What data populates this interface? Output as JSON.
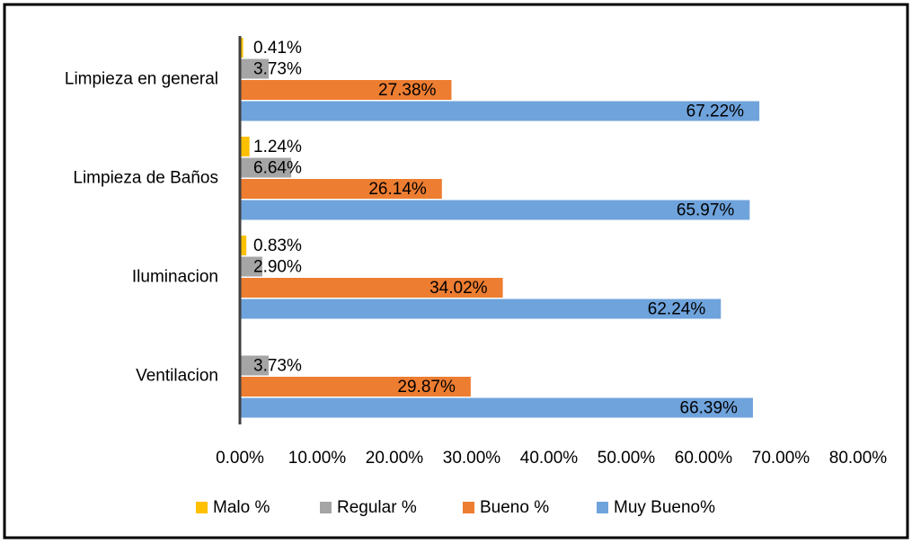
{
  "chart_data": {
    "type": "hbar",
    "categories": [
      "Limpieza en general",
      "Limpieza de Baños",
      "Iluminacion",
      "Ventilacion"
    ],
    "series": [
      {
        "name": "Malo %",
        "color": "#ffc000",
        "values": [
          0.41,
          1.24,
          0.83,
          null
        ],
        "value_labels": [
          "0.41%",
          "1.24%",
          "0.83%",
          null
        ]
      },
      {
        "name": "Regular %",
        "color": "#a5a5a5",
        "values": [
          3.73,
          6.64,
          2.9,
          3.73
        ],
        "value_labels": [
          "3.73%",
          "6.64%",
          "2.90%",
          "3.73%"
        ]
      },
      {
        "name": "Bueno %",
        "color": "#ed7d31",
        "values": [
          27.38,
          26.14,
          34.02,
          29.87
        ],
        "value_labels": [
          "27.38%",
          "26.14%",
          "34.02%",
          "29.87%"
        ]
      },
      {
        "name": "Muy Bueno%",
        "color": "#6fa3dc",
        "values": [
          67.22,
          65.97,
          62.24,
          66.39
        ],
        "value_labels": [
          "67.22%",
          "65.97%",
          "62.24%",
          "66.39%"
        ]
      }
    ],
    "xlim": [
      0,
      80
    ],
    "xticks": [
      {
        "value": 0,
        "label": "0.00%"
      },
      {
        "value": 10,
        "label": "10.00%"
      },
      {
        "value": 20,
        "label": "20.00%"
      },
      {
        "value": 30,
        "label": "30.00%"
      },
      {
        "value": 40,
        "label": "40.00%"
      },
      {
        "value": 50,
        "label": "50.00%"
      },
      {
        "value": 60,
        "label": "60.00%"
      },
      {
        "value": 70,
        "label": "70.00%"
      },
      {
        "value": 80,
        "label": "80.00%"
      }
    ],
    "legend": "bottom"
  }
}
